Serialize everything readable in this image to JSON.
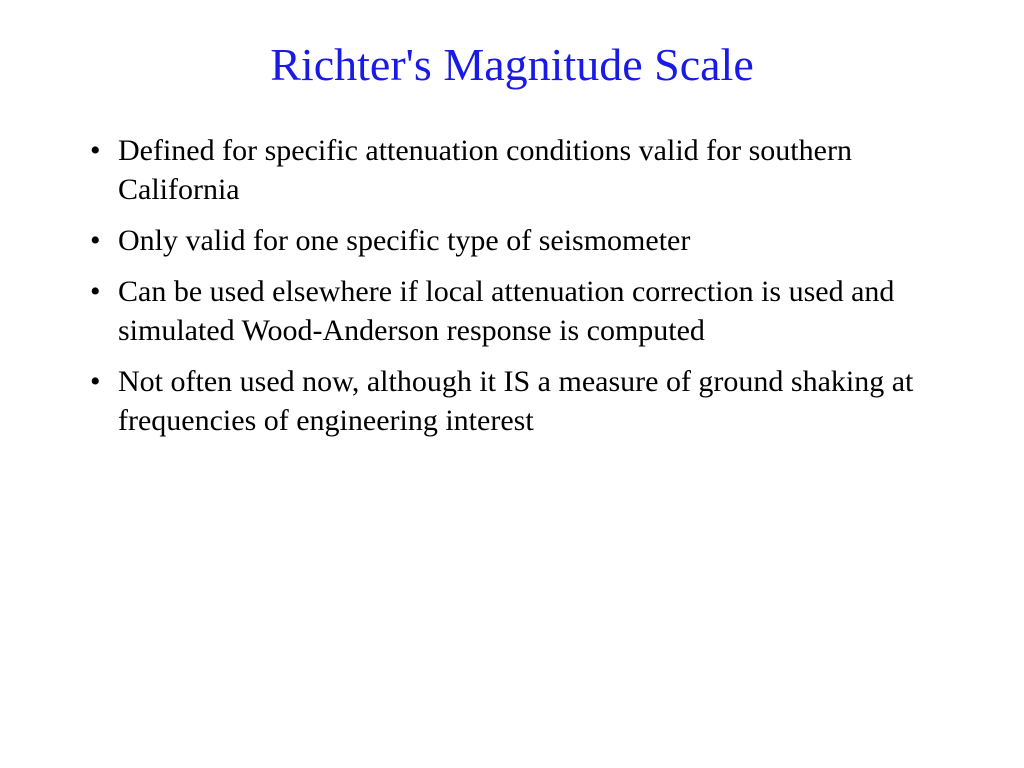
{
  "slide": {
    "title": "Richter's Magnitude Scale",
    "title_color": "#1a1ae6",
    "title_fontsize": 46,
    "body_color": "#000000",
    "body_fontsize": 30,
    "background_color": "#ffffff",
    "bullets": [
      "Defined for specific attenuation conditions valid for southern California",
      "Only valid for one specific type of seismometer",
      "Can be used elsewhere if local attenuation correction is used and simulated Wood-Anderson response is computed",
      "Not often used now, although it IS a measure of ground shaking at frequencies of engineering interest"
    ]
  }
}
